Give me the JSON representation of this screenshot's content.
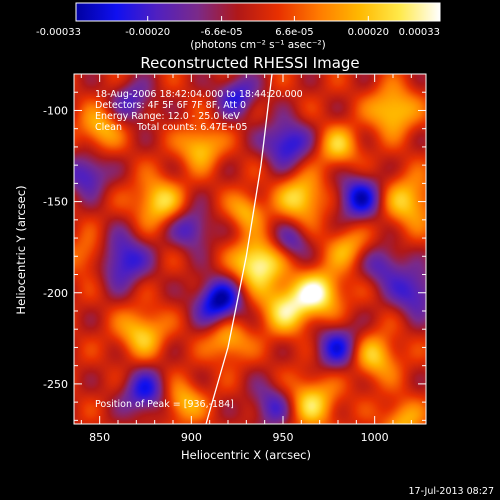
{
  "colorbar": {
    "tick_labels": [
      "-0.00033",
      "-0.00020",
      "-6.6e-05",
      "6.6e-05",
      "0.00020",
      "0.00033"
    ],
    "tick_values": [
      -0.00033,
      -0.0002,
      -6.6e-05,
      6.6e-05,
      0.0002,
      0.00033
    ],
    "range": [
      -0.00033,
      0.00033
    ],
    "units_label": "(photons cm⁻² s⁻¹ asec⁻²)",
    "colors": [
      "#0000a0",
      "#1010f0",
      "#5020c0",
      "#7a2a8a",
      "#b01818",
      "#e83000",
      "#ff7a00",
      "#ffb800",
      "#ffe94a",
      "#ffffff"
    ]
  },
  "chart_data": {
    "type": "heatmap",
    "title": "Reconstructed RHESSI Image",
    "xlabel": "Heliocentric X (arcsec)",
    "ylabel": "Heliocentric Y (arcsec)",
    "xlim": [
      836,
      1028
    ],
    "ylim": [
      -272,
      -80
    ],
    "x_ticks": [
      850,
      900,
      950,
      1000
    ],
    "y_ticks": [
      -250,
      -200,
      -150,
      -100
    ],
    "x_tick_labels": [
      "850",
      "900",
      "950",
      "1000"
    ],
    "y_tick_labels": [
      "-250",
      "-200",
      "-150",
      "-100"
    ],
    "info_lines": [
      "18-Aug-2006 18:42:04.000 to 18:44:20.000",
      "Detectors: 4F 5F 6F 7F 8F, Att 0",
      "Energy Range: 12.0 - 25.0 keV",
      "Clean     Total counts: 6.47E+05"
    ],
    "peak_label": "Position of Peak = [936,-184]",
    "peak": [
      936,
      -184
    ],
    "limb_curve": [
      [
        908,
        -272
      ],
      [
        920,
        -230
      ],
      [
        930,
        -180
      ],
      [
        938,
        -130
      ],
      [
        944,
        -80
      ]
    ],
    "blobs": [
      [
        936,
        -184,
        0.00033,
        9
      ],
      [
        952,
        -208,
        0.00026,
        10
      ],
      [
        970,
        -200,
        0.00028,
        9
      ],
      [
        882,
        -150,
        0.00024,
        9
      ],
      [
        905,
        -120,
        0.00022,
        8
      ],
      [
        960,
        -148,
        0.00025,
        9
      ],
      [
        1010,
        -100,
        0.00024,
        9
      ],
      [
        1018,
        -150,
        0.00022,
        10
      ],
      [
        1000,
        -235,
        0.00022,
        9
      ],
      [
        873,
        -222,
        0.00022,
        9
      ],
      [
        920,
        -226,
        0.0002,
        8
      ],
      [
        965,
        -260,
        0.00024,
        10
      ],
      [
        895,
        -260,
        0.0002,
        8
      ],
      [
        850,
        -110,
        0.00019,
        8
      ],
      [
        980,
        -120,
        0.0002,
        8
      ],
      [
        1015,
        -270,
        0.00018,
        8
      ],
      [
        845,
        -180,
        0.00016,
        8
      ],
      [
        930,
        -155,
        0.00018,
        7
      ],
      [
        985,
        -175,
        0.00017,
        8
      ],
      [
        915,
        -205,
        -0.00033,
        9
      ],
      [
        862,
        -182,
        -0.00026,
        10
      ],
      [
        952,
        -118,
        -0.00026,
        9
      ],
      [
        992,
        -148,
        -0.00028,
        9
      ],
      [
        925,
        -92,
        -0.00022,
        8
      ],
      [
        980,
        -230,
        -0.00024,
        9
      ],
      [
        875,
        -255,
        -0.00024,
        9
      ],
      [
        843,
        -135,
        -0.00022,
        8
      ],
      [
        1022,
        -200,
        -0.00022,
        9
      ],
      [
        900,
        -165,
        -0.0002,
        8
      ],
      [
        945,
        -262,
        -0.0002,
        9
      ],
      [
        868,
        -95,
        -0.00018,
        8
      ],
      [
        1005,
        -185,
        -0.00018,
        8
      ],
      [
        955,
        -172,
        -0.00016,
        7
      ]
    ]
  },
  "timestamp": "17-Jul-2013 08:27"
}
